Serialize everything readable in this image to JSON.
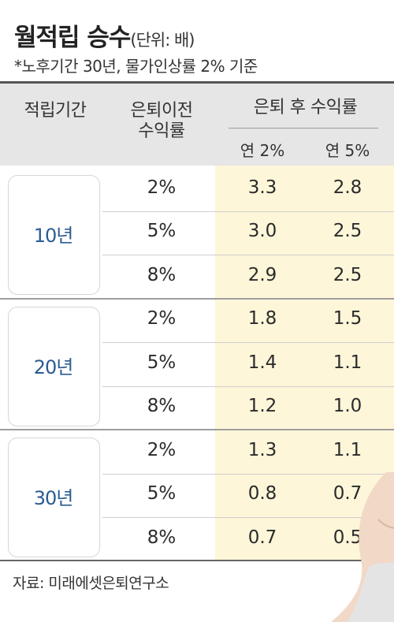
{
  "title": "월적립 승수",
  "unit": "(단위: 배)",
  "note": "*노후기간 30년, 물가인상률 2% 기준",
  "headers": {
    "period": "적립기간",
    "pre_retirement_line1": "은퇴이전",
    "pre_retirement_line2": "수익률",
    "post_retirement": "은퇴 후 수익률",
    "post_2": "연 2%",
    "post_5": "연 5%"
  },
  "groups": [
    {
      "label": "10년",
      "rows": [
        {
          "pre": "2%",
          "post_2": "3.3",
          "post_5": "2.8"
        },
        {
          "pre": "5%",
          "post_2": "3.0",
          "post_5": "2.5"
        },
        {
          "pre": "8%",
          "post_2": "2.9",
          "post_5": "2.5"
        }
      ]
    },
    {
      "label": "20년",
      "rows": [
        {
          "pre": "2%",
          "post_2": "1.8",
          "post_5": "1.5"
        },
        {
          "pre": "5%",
          "post_2": "1.4",
          "post_5": "1.1"
        },
        {
          "pre": "8%",
          "post_2": "1.2",
          "post_5": "1.0"
        }
      ]
    },
    {
      "label": "30년",
      "rows": [
        {
          "pre": "2%",
          "post_2": "1.3",
          "post_5": "1.1"
        },
        {
          "pre": "5%",
          "post_2": "0.8",
          "post_5": "0.7"
        },
        {
          "pre": "8%",
          "post_2": "0.7",
          "post_5": "0.5"
        }
      ]
    }
  ],
  "source": "자료: 미래에셋은퇴연구소",
  "colors": {
    "header_band": "#e6e6e6",
    "highlight_column": "#fdf6d9",
    "group_label": "#2a5c93"
  },
  "chart_data": {
    "type": "table",
    "title": "월적립 승수",
    "unit": "(단위: 배)",
    "note": "*노후기간 30년, 물가인상률 2% 기준",
    "columns": [
      "적립기간",
      "은퇴이전 수익률",
      "연 2%",
      "연 5%"
    ],
    "rows": [
      [
        "10년",
        "2%",
        3.3,
        2.8
      ],
      [
        "10년",
        "5%",
        3.0,
        2.5
      ],
      [
        "10년",
        "8%",
        2.9,
        2.5
      ],
      [
        "20년",
        "2%",
        1.8,
        1.5
      ],
      [
        "20년",
        "5%",
        1.4,
        1.1
      ],
      [
        "20년",
        "8%",
        1.2,
        1.0
      ],
      [
        "30년",
        "2%",
        1.3,
        1.1
      ],
      [
        "30년",
        "5%",
        0.8,
        0.7
      ],
      [
        "30년",
        "8%",
        0.7,
        0.5
      ]
    ],
    "source": "자료: 미래에셋은퇴연구소"
  }
}
